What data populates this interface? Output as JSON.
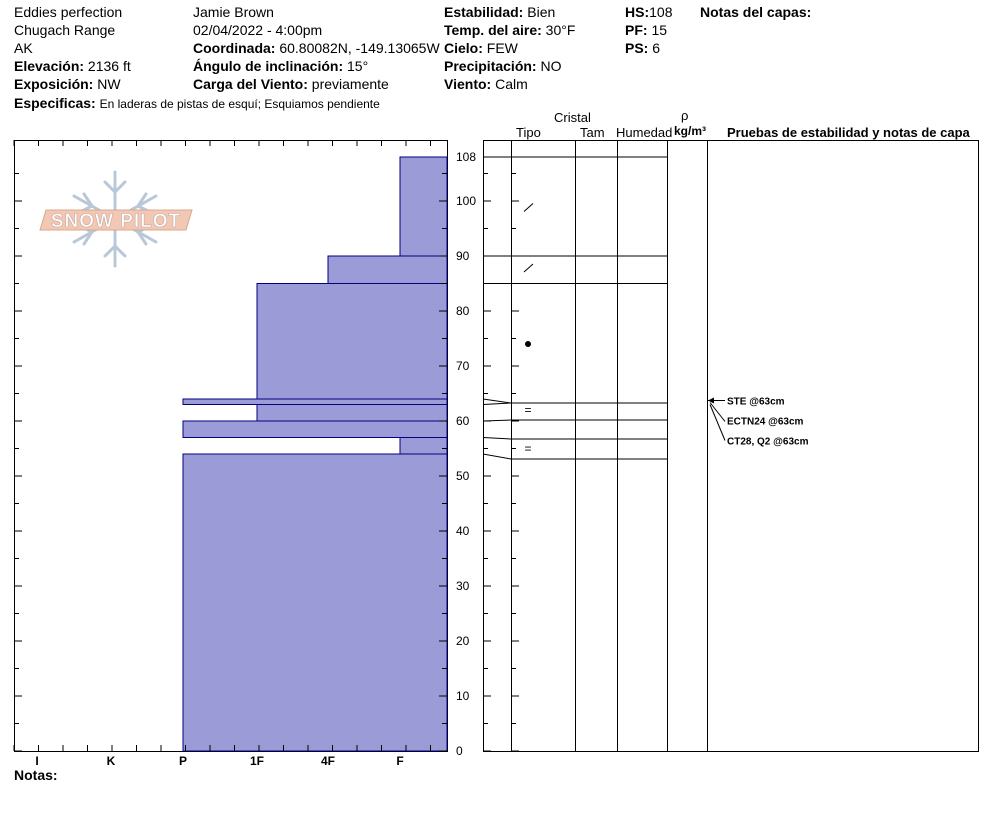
{
  "header": {
    "location_name": "Eddies perfection",
    "range": "Chugach Range",
    "state": "AK",
    "elevation_label": "Elevación:",
    "elevation_value": "2136 ft",
    "aspect_label": "Exposición:",
    "aspect_value": "NW",
    "specifics_label": "Especificas:",
    "specifics_value": "En laderas de pistas de esquí; Esquiamos pendiente",
    "observer": "Jamie Brown",
    "datetime": "02/04/2022 - 4:00pm",
    "coord_label": "Coordinada:",
    "coord_value": "60.80082N, -149.13065W",
    "incline_label": "Ángulo de inclinación:",
    "incline_value": "15°",
    "wind_load_label": "Carga del Viento:",
    "wind_load_value": "previamente",
    "stability_label": "Estabilidad:",
    "stability_value": "Bien",
    "air_temp_label": "Temp. del aire:",
    "air_temp_value": "30°F",
    "sky_label": "Cielo:",
    "sky_value": "FEW",
    "precip_label": "Precipitación:",
    "precip_value": "NO",
    "wind_label": "Viento:",
    "wind_value": "Calm",
    "hs_label": "HS:",
    "hs_value": "108",
    "pf_label": "PF:",
    "pf_value": "15",
    "ps_label": "PS:",
    "ps_value": "6",
    "layer_notes_label": "Notas del capas:"
  },
  "logo_text": "SNOW PILOT",
  "notes_label": "Notas:",
  "columns": {
    "cristal": "Cristal",
    "tipo": "Tipo",
    "tam": "Tam",
    "humedad": "Humedad",
    "rho": "ρ",
    "density_unit": "kg/m³",
    "tests": "Pruebas de estabilidad y notas de capa"
  },
  "chart_data": {
    "type": "bar",
    "orientation": "horizontal",
    "hardness_categories": [
      "I",
      "K",
      "P",
      "1F",
      "4F",
      "F"
    ],
    "y_ticks": [
      0,
      10,
      20,
      30,
      40,
      50,
      60,
      70,
      80,
      90,
      100,
      108
    ],
    "ylim": [
      0,
      108
    ],
    "layers": [
      {
        "bottom": 0,
        "top": 54,
        "hardness": "P"
      },
      {
        "bottom": 54,
        "top": 57,
        "hardness": "F"
      },
      {
        "bottom": 57,
        "top": 60,
        "hardness": "P"
      },
      {
        "bottom": 60,
        "top": 63,
        "hardness": "1F"
      },
      {
        "bottom": 63,
        "top": 64,
        "hardness": "P"
      },
      {
        "bottom": 64,
        "top": 85,
        "hardness": "1F"
      },
      {
        "bottom": 85,
        "top": 90,
        "hardness": "4F"
      },
      {
        "bottom": 90,
        "top": 108,
        "hardness": "F"
      }
    ],
    "layer_boundaries": [
      54,
      57,
      60,
      63,
      64,
      85,
      90,
      108
    ],
    "grain_symbols": [
      {
        "height": 99,
        "symbol": "/"
      },
      {
        "height": 88,
        "symbol": "/"
      },
      {
        "height": 74,
        "symbol": "●"
      },
      {
        "height": 62,
        "symbol": "="
      },
      {
        "height": 55,
        "symbol": "="
      }
    ],
    "stability_tests": [
      "STE @63cm",
      "ECTN24 @63cm",
      "CT28, Q2 @63cm"
    ],
    "test_height": 63,
    "fill_color": "#9b9bd7",
    "edge_color": "#000080"
  }
}
